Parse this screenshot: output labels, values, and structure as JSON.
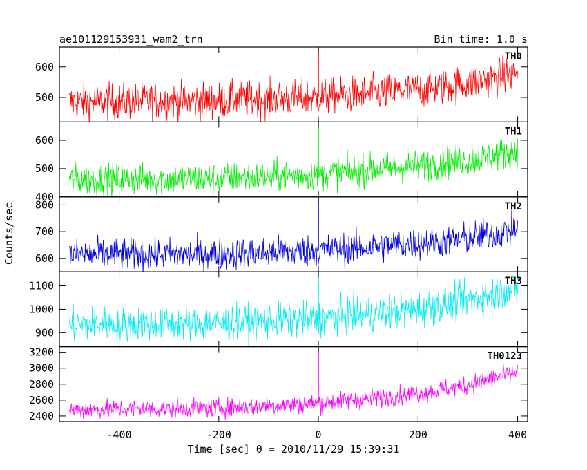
{
  "chart_data": {
    "type": "line",
    "title": "ae101129153931_wam2_trn",
    "bin_time_label": "Bin time: 1.0 s",
    "xlabel": "Time [sec] 0 = 2010/11/29 15:39:31",
    "ylabel": "Counts/sec",
    "xlim": [
      -520,
      420
    ],
    "x_ticks": [
      -400,
      -200,
      0,
      200,
      400
    ],
    "x_range": [
      -500,
      400
    ],
    "spike_x": 0,
    "panels": [
      {
        "name": "TH0",
        "color": "#ff0000",
        "ylim": [
          420,
          665
        ],
        "yticks": [
          500,
          600
        ],
        "trend": [
          [
            -500,
            485
          ],
          [
            -200,
            490
          ],
          [
            0,
            500
          ],
          [
            200,
            525
          ],
          [
            300,
            545
          ],
          [
            400,
            580
          ]
        ],
        "noise": 30,
        "spike_top": 665
      },
      {
        "name": "TH1",
        "color": "#00ee00",
        "ylim": [
          400,
          665
        ],
        "yticks": [
          400,
          500,
          600
        ],
        "trend": [
          [
            -500,
            460
          ],
          [
            -200,
            465
          ],
          [
            0,
            480
          ],
          [
            200,
            510
          ],
          [
            300,
            530
          ],
          [
            400,
            560
          ]
        ],
        "noise": 28,
        "spike_top": 665
      },
      {
        "name": "TH2",
        "color": "#0000dd",
        "ylim": [
          550,
          830
        ],
        "yticks": [
          600,
          700,
          800
        ],
        "trend": [
          [
            -500,
            615
          ],
          [
            -200,
            615
          ],
          [
            0,
            630
          ],
          [
            200,
            655
          ],
          [
            300,
            675
          ],
          [
            400,
            710
          ]
        ],
        "noise": 30,
        "spike_top": 830
      },
      {
        "name": "TH3",
        "color": "#00eeee",
        "ylim": [
          840,
          1160
        ],
        "yticks": [
          900,
          1000,
          1100
        ],
        "trend": [
          [
            -500,
            935
          ],
          [
            -200,
            940
          ],
          [
            0,
            960
          ],
          [
            200,
            1000
          ],
          [
            300,
            1040
          ],
          [
            400,
            1090
          ]
        ],
        "noise": 38,
        "spike_top": 1150
      },
      {
        "name": "TH0123",
        "color": "#ff00ff",
        "ylim": [
          2330,
          3270
        ],
        "yticks": [
          2400,
          2600,
          2800,
          3000,
          3200
        ],
        "trend": [
          [
            -500,
            2480
          ],
          [
            -200,
            2500
          ],
          [
            0,
            2560
          ],
          [
            200,
            2680
          ],
          [
            300,
            2790
          ],
          [
            400,
            2950
          ]
        ],
        "noise": 60,
        "spike_top": 3270
      }
    ]
  }
}
